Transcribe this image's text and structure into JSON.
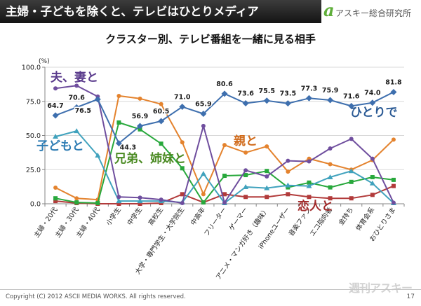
{
  "header": {
    "title": "主婦・子どもを除くと、テレビはひとりメディア",
    "logo_mark": "a",
    "logo_text": "アスキー総合研究所"
  },
  "colors": {
    "header_bg": "#1e1e1e",
    "logo_green": "#5fae3a",
    "gridline": "#d9d9d9",
    "axis": "#868686"
  },
  "chart_data": {
    "type": "line",
    "title": "クラスター別、テレビ番組を一緒に見る相手",
    "yunit": "(%)",
    "ylim": [
      0,
      100
    ],
    "yticks": [
      "0.0",
      "25.0",
      "50.0",
      "75.0",
      "100.0"
    ],
    "grid": true,
    "categories": [
      "主婦・20代",
      "主婦・30代",
      "主婦・40代",
      "小学生",
      "中学生",
      "高校生",
      "大学・専門学生・大学院生",
      "中高年",
      "フリーター",
      "ゲーマー",
      "アニメ・マンガ好き（趣味）",
      "iPhoneユーザー",
      "音楽ファン",
      "エコ指向者",
      "金持ち",
      "体育会系",
      "おひとりさま"
    ],
    "series": [
      {
        "name": "ひとりで",
        "color": "#3e6fae",
        "label_color": "#2c5b95",
        "marker": "diamond",
        "values": [
          64.7,
          70.6,
          76.5,
          44.3,
          56.9,
          60.5,
          71.0,
          65.9,
          80.6,
          73.6,
          75.5,
          73.5,
          77.3,
          75.9,
          71.6,
          74.0,
          81.8
        ],
        "value_labels": [
          "64.7",
          "70.6",
          "76.5",
          "44.3",
          "56.9",
          "60.5",
          "71.0",
          "65.9",
          "80.6",
          "73.6",
          "75.5",
          "73.5",
          "77.3",
          "75.9",
          "71.6",
          "74.0",
          "81.8"
        ]
      },
      {
        "name": "夫、妻と",
        "color": "#6f4e9e",
        "label_color": "#5a3b8c",
        "marker": "circle",
        "values": [
          84.5,
          86.5,
          78.5,
          5.0,
          4.5,
          3.0,
          0.5,
          57.0,
          0.8,
          24.5,
          20.0,
          31.5,
          31.0,
          40.5,
          47.5,
          33.0,
          0.8
        ]
      },
      {
        "name": "子どもと",
        "color": "#40a2bd",
        "label_color": "#2f7db4",
        "marker": "triangle",
        "values": [
          49.2,
          53.3,
          35.4,
          2.0,
          2.0,
          2.0,
          1.0,
          22.0,
          0.5,
          12.3,
          11.5,
          13.5,
          13.0,
          19.5,
          24.0,
          15.0,
          0.5
        ]
      },
      {
        "name": "兄弟、姉妹と",
        "color": "#28a83c",
        "label_color": "#4a8a22",
        "marker": "square",
        "values": [
          4.0,
          1.0,
          0.5,
          59.5,
          54.5,
          44.0,
          26.0,
          1.0,
          20.5,
          21.0,
          24.0,
          12.0,
          15.5,
          12.0,
          16.0,
          19.5,
          17.5
        ]
      },
      {
        "name": "親と",
        "color": "#e4832e",
        "label_color": "#d06a1a",
        "marker": "circle",
        "values": [
          11.8,
          4.0,
          3.0,
          79.0,
          77.0,
          73.0,
          45.0,
          7.0,
          43.0,
          37.5,
          42.0,
          23.5,
          33.0,
          29.0,
          25.0,
          32.0,
          47.0
        ]
      },
      {
        "name": "恋人と",
        "color": "#b23b3b",
        "label_color": "#a12a2a",
        "marker": "square",
        "values": [
          2.0,
          0.5,
          0.0,
          0.0,
          0.0,
          0.5,
          7.0,
          1.0,
          7.0,
          5.0,
          5.0,
          7.0,
          5.0,
          4.0,
          4.0,
          6.5,
          13.0
        ]
      }
    ]
  },
  "footer": {
    "copyright": "Copyright (C) 2012 ASCII MEDIA WORKS. All rights reserved.",
    "page_number": "17",
    "watermark": "週刊アスキー"
  }
}
